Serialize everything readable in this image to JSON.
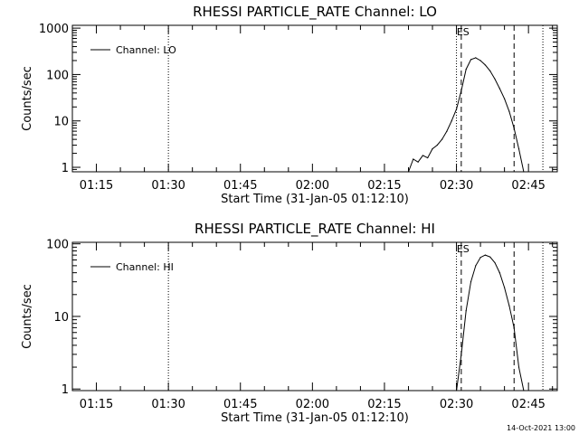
{
  "footer_stamp": "14-Oct-2021 13:00",
  "chart_data": [
    {
      "type": "line",
      "title": "RHESSI PARTICLE_RATE Channel: LO",
      "xlabel": "Start Time (31-Jan-05 01:12:10)",
      "ylabel": "Counts/sec",
      "yscale": "log",
      "xlim": [
        "01:10",
        "02:51"
      ],
      "ylim": [
        0.8,
        1150
      ],
      "xticks": [
        "01:15",
        "01:30",
        "01:45",
        "02:00",
        "02:15",
        "02:30",
        "02:45"
      ],
      "yticks": [
        1,
        10,
        100,
        1000
      ],
      "ytick_labels": [
        "1",
        "10",
        "100",
        "1000"
      ],
      "legend": {
        "placement": "top-left",
        "label": "Channel: LO"
      },
      "markers": [
        {
          "time": "01:30",
          "style": "dotted",
          "label": ""
        },
        {
          "time": "02:30",
          "style": "dotted",
          "label": ""
        },
        {
          "time": "02:31",
          "style": "dashed",
          "label": "ES"
        },
        {
          "time": "02:42",
          "style": "dashed",
          "label": ""
        },
        {
          "time": "02:48",
          "style": "dotted",
          "label": ""
        }
      ],
      "series": [
        {
          "name": "Channel: LO",
          "x": [
            "02:20",
            "02:21",
            "02:22",
            "02:23",
            "02:24",
            "02:25",
            "02:26",
            "02:27",
            "02:28",
            "02:29",
            "02:30",
            "02:31",
            "02:32",
            "02:33",
            "02:34",
            "02:35",
            "02:36",
            "02:37",
            "02:38",
            "02:39",
            "02:40",
            "02:41",
            "02:42",
            "02:43",
            "02:44"
          ],
          "values": [
            0.8,
            1.5,
            1.3,
            1.8,
            1.6,
            2.5,
            3.0,
            4.0,
            6.0,
            10,
            18,
            45,
            130,
            210,
            230,
            200,
            160,
            120,
            80,
            50,
            30,
            16,
            7,
            2.5,
            0.8
          ]
        }
      ]
    },
    {
      "type": "line",
      "title": "RHESSI PARTICLE_RATE Channel: HI",
      "xlabel": "Start Time (31-Jan-05 01:12:10)",
      "ylabel": "Counts/sec",
      "yscale": "log",
      "xlim": [
        "01:10",
        "02:51"
      ],
      "ylim": [
        0.95,
        105
      ],
      "xticks": [
        "01:15",
        "01:30",
        "01:45",
        "02:00",
        "02:15",
        "02:30",
        "02:45"
      ],
      "yticks": [
        1,
        10,
        100
      ],
      "ytick_labels": [
        "1",
        "10",
        "100"
      ],
      "legend": {
        "placement": "top-left",
        "label": "Channel: HI"
      },
      "markers": [
        {
          "time": "01:30",
          "style": "dotted",
          "label": ""
        },
        {
          "time": "02:30",
          "style": "dotted",
          "label": ""
        },
        {
          "time": "02:31",
          "style": "dashed",
          "label": "ES"
        },
        {
          "time": "02:42",
          "style": "dashed",
          "label": ""
        },
        {
          "time": "02:48",
          "style": "dotted",
          "label": ""
        }
      ],
      "series": [
        {
          "name": "Channel: HI",
          "x": [
            "02:30",
            "02:31",
            "02:32",
            "02:33",
            "02:34",
            "02:35",
            "02:36",
            "02:37",
            "02:38",
            "02:39",
            "02:40",
            "02:41",
            "02:42",
            "02:43",
            "02:44"
          ],
          "values": [
            0.95,
            3.0,
            12,
            30,
            50,
            65,
            70,
            66,
            55,
            40,
            25,
            14,
            7,
            2.0,
            0.95
          ]
        }
      ]
    }
  ]
}
